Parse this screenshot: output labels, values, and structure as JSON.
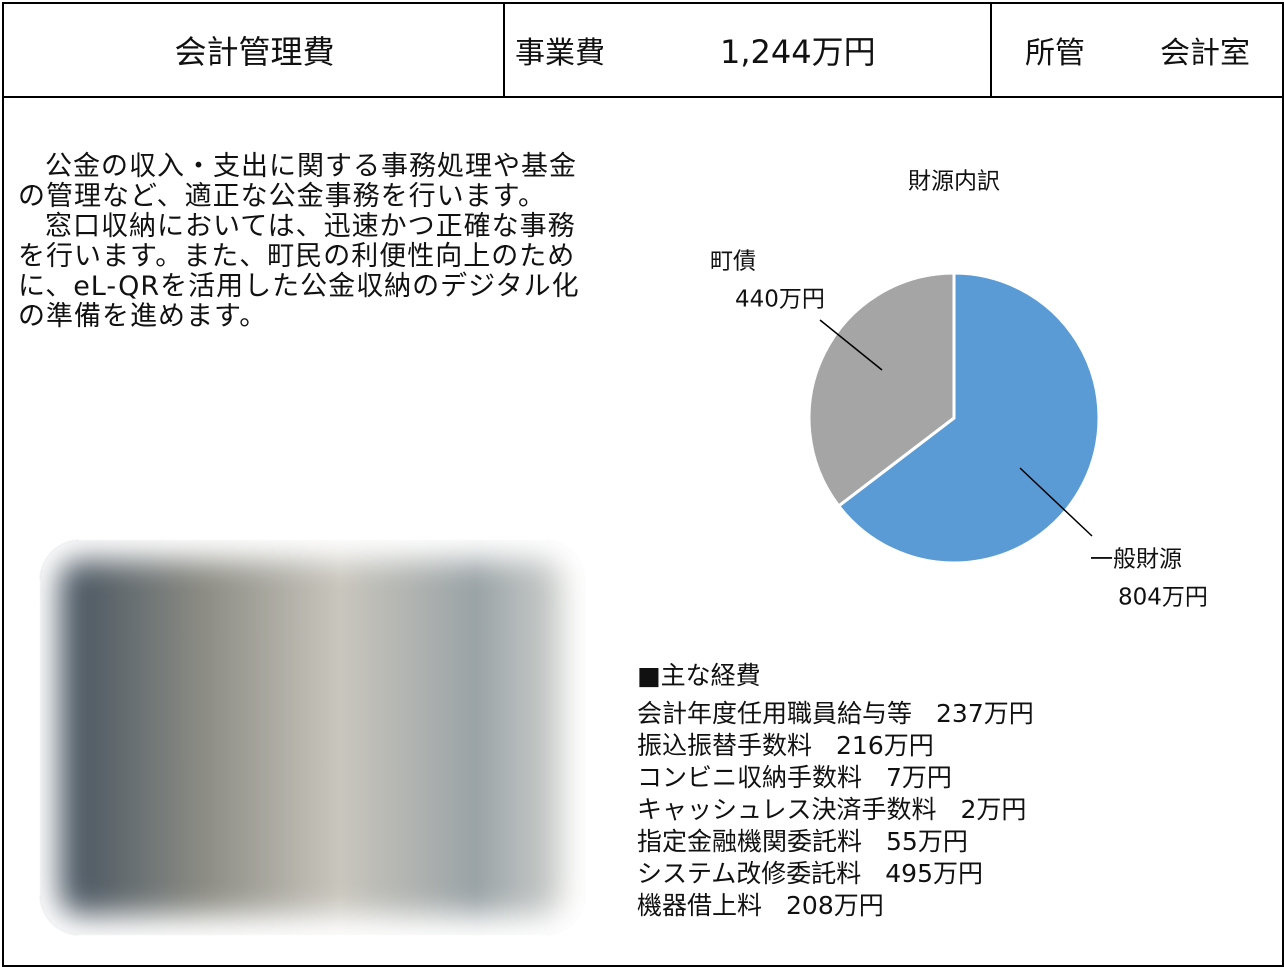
{
  "header": {
    "title": "会計管理費",
    "cost_label": "事業費",
    "cost": "1,244万円",
    "dept_label": "所管",
    "dept": "会計室"
  },
  "description": [
    "公金の収入・支出に関する事務処理や基金の管理など、適正な公金事務を行います。",
    "窓口収納においては、迅速かつ正確な事務を行います。また、町民の利便性向上のために、eL-QRを活用した公金収納のデジタル化の準備を進めます。"
  ],
  "chart_data": {
    "type": "pie",
    "title": "財源内訳",
    "categories": [
      "一般財源",
      "町債"
    ],
    "values": [
      804,
      440
    ],
    "value_labels": [
      "804万円",
      "440万円"
    ],
    "colors": [
      "#5b9bd5",
      "#a5a5a5"
    ]
  },
  "expenses": {
    "heading": "■主な経費",
    "items": [
      {
        "name": "会計年度任用職員給与等",
        "amount": "237万円"
      },
      {
        "name": "振込振替手数料",
        "amount": "216万円"
      },
      {
        "name": "コンビニ収納手数料",
        "amount": "7万円"
      },
      {
        "name": "キャッシュレス決済手数料",
        "amount": "2万円"
      },
      {
        "name": "指定金融機関委託料",
        "amount": "55万円"
      },
      {
        "name": "システム改修委託料",
        "amount": "495万円"
      },
      {
        "name": "機器借上料",
        "amount": "208万円"
      }
    ]
  }
}
